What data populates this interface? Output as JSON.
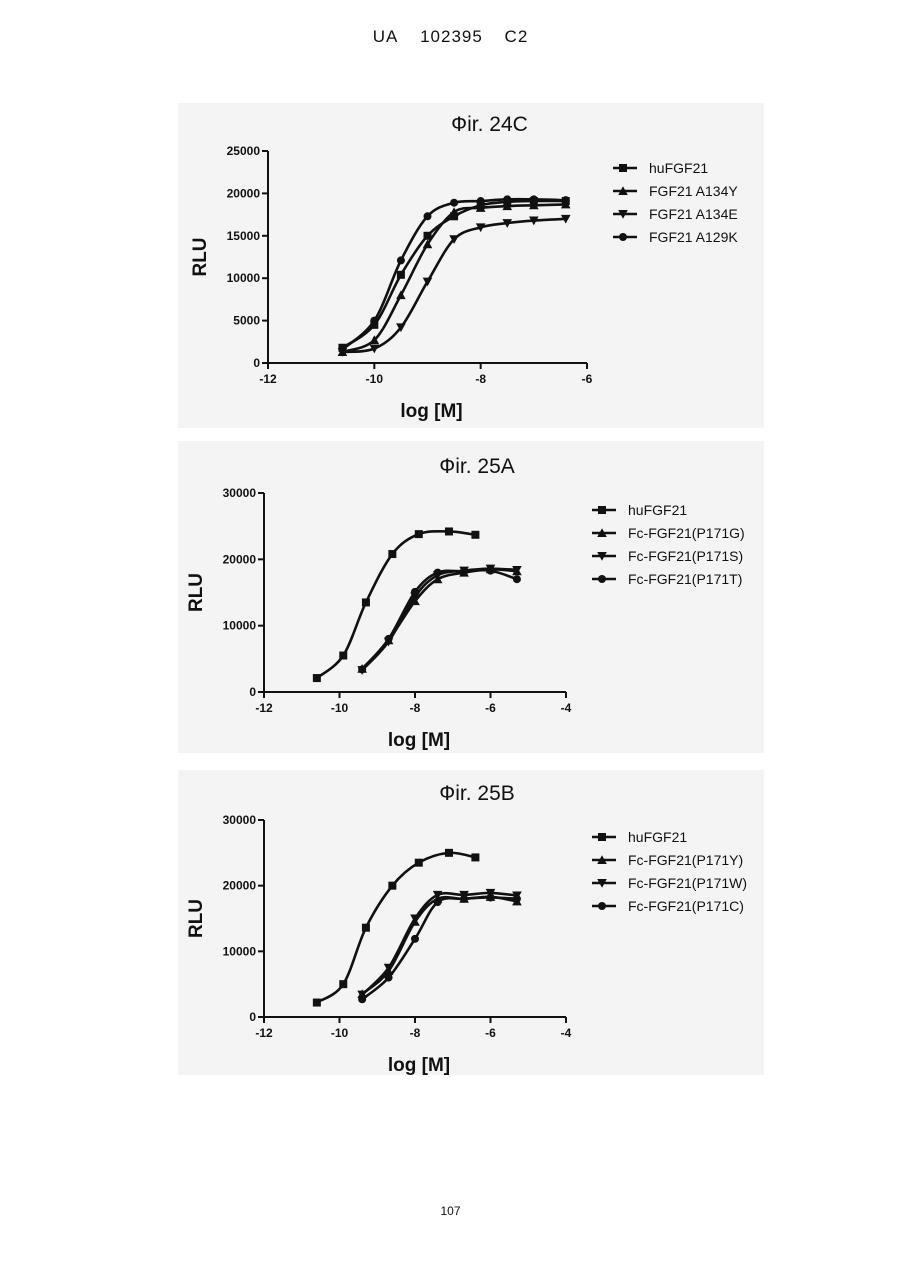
{
  "header": {
    "code": "UA",
    "number": "102395",
    "kind": "C2"
  },
  "page_number": "107",
  "chart_data": [
    {
      "type": "line",
      "title": "Фir. 24C",
      "xlabel": "log [M]",
      "ylabel": "RLU",
      "xlim": [
        -12,
        -6
      ],
      "ylim": [
        0,
        25000
      ],
      "x_ticks": [
        "-12",
        "-10",
        "-8",
        "-6"
      ],
      "y_ticks": [
        "0",
        "5000",
        "10000",
        "15000",
        "20000",
        "25000"
      ],
      "legend_position": "right",
      "series": [
        {
          "name": "huFGF21",
          "marker": "square",
          "x": [
            -10.6,
            -10.0,
            -9.5,
            -9.0,
            -8.5,
            -8.0,
            -7.5,
            -7.0,
            -6.4
          ],
          "y": [
            1800,
            4500,
            10400,
            15000,
            17300,
            18600,
            19000,
            19100,
            19100
          ]
        },
        {
          "name": "FGF21 A134Y",
          "marker": "triangle-up",
          "x": [
            -10.6,
            -10.0,
            -9.5,
            -9.0,
            -8.5,
            -8.0,
            -7.5,
            -7.0,
            -6.4
          ],
          "y": [
            1300,
            2700,
            8000,
            14000,
            17800,
            18300,
            18500,
            18600,
            18700
          ]
        },
        {
          "name": "FGF21 A134E",
          "marker": "triangle-down",
          "x": [
            -10.6,
            -10.0,
            -9.5,
            -9.0,
            -8.5,
            -8.0,
            -7.5,
            -7.0,
            -6.4
          ],
          "y": [
            1300,
            1700,
            4200,
            9600,
            14600,
            16000,
            16500,
            16800,
            17000
          ]
        },
        {
          "name": "FGF21 A129K",
          "marker": "circle",
          "x": [
            -10.6,
            -10.0,
            -9.5,
            -9.0,
            -8.5,
            -8.0,
            -7.5,
            -7.0,
            -6.4
          ],
          "y": [
            1600,
            5000,
            12100,
            17300,
            18900,
            19100,
            19300,
            19300,
            19200
          ]
        }
      ]
    },
    {
      "type": "line",
      "title": "Фir. 25A",
      "xlabel": "log [M]",
      "ylabel": "RLU",
      "xlim": [
        -12,
        -4
      ],
      "ylim": [
        0,
        30000
      ],
      "x_ticks": [
        "-12",
        "-10",
        "-8",
        "-6",
        "-4"
      ],
      "y_ticks": [
        "0",
        "10000",
        "20000",
        "30000"
      ],
      "legend_position": "right",
      "series": [
        {
          "name": "huFGF21",
          "marker": "square",
          "x": [
            -10.6,
            -9.9,
            -9.3,
            -8.6,
            -7.9,
            -7.1,
            -6.4
          ],
          "y": [
            2100,
            5500,
            13500,
            20800,
            23800,
            24200,
            23700
          ]
        },
        {
          "name": "Fc-FGF21(P171G)",
          "marker": "triangle-up",
          "x": [
            -9.4,
            -8.7,
            -8.0,
            -7.4,
            -6.7,
            -6.0,
            -5.3
          ],
          "y": [
            3500,
            7800,
            13700,
            17000,
            18000,
            18500,
            18200
          ]
        },
        {
          "name": "Fc-FGF21(P171S)",
          "marker": "triangle-down",
          "x": [
            -9.4,
            -8.7,
            -8.0,
            -7.4,
            -6.7,
            -6.0,
            -5.3
          ],
          "y": [
            3300,
            7600,
            14400,
            17600,
            18300,
            18600,
            18400
          ]
        },
        {
          "name": "Fc-FGF21(P171T)",
          "marker": "circle",
          "x": [
            -9.4,
            -8.7,
            -8.0,
            -7.4,
            -6.7,
            -6.0,
            -5.3
          ],
          "y": [
            3400,
            8000,
            15100,
            18000,
            18200,
            18300,
            17000
          ]
        }
      ]
    },
    {
      "type": "line",
      "title": "Фir. 25B",
      "xlabel": "log [M]",
      "ylabel": "RLU",
      "xlim": [
        -12,
        -4
      ],
      "ylim": [
        0,
        30000
      ],
      "x_ticks": [
        "-12",
        "-10",
        "-8",
        "-6",
        "-4"
      ],
      "y_ticks": [
        "0",
        "10000",
        "20000",
        "30000"
      ],
      "legend_position": "right",
      "series": [
        {
          "name": "huFGF21",
          "marker": "square",
          "x": [
            -10.6,
            -9.9,
            -9.3,
            -8.6,
            -7.9,
            -7.1,
            -6.4
          ],
          "y": [
            2200,
            5000,
            13600,
            20000,
            23500,
            25000,
            24300
          ]
        },
        {
          "name": "Fc-FGF21(P171Y)",
          "marker": "triangle-up",
          "x": [
            -9.4,
            -8.7,
            -8.0,
            -7.4,
            -6.7,
            -6.0,
            -5.3
          ],
          "y": [
            3500,
            7000,
            14500,
            18000,
            18000,
            18300,
            17600
          ]
        },
        {
          "name": "Fc-FGF21(P171W)",
          "marker": "triangle-down",
          "x": [
            -9.4,
            -8.7,
            -8.0,
            -7.4,
            -6.7,
            -6.0,
            -5.3
          ],
          "y": [
            3400,
            7500,
            15000,
            18600,
            18600,
            18900,
            18500
          ]
        },
        {
          "name": "Fc-FGF21(P171C)",
          "marker": "circle",
          "x": [
            -9.4,
            -8.7,
            -8.0,
            -7.4,
            -6.7,
            -6.0,
            -5.3
          ],
          "y": [
            2700,
            6000,
            11900,
            17500,
            18000,
            18200,
            18000
          ]
        }
      ]
    }
  ]
}
